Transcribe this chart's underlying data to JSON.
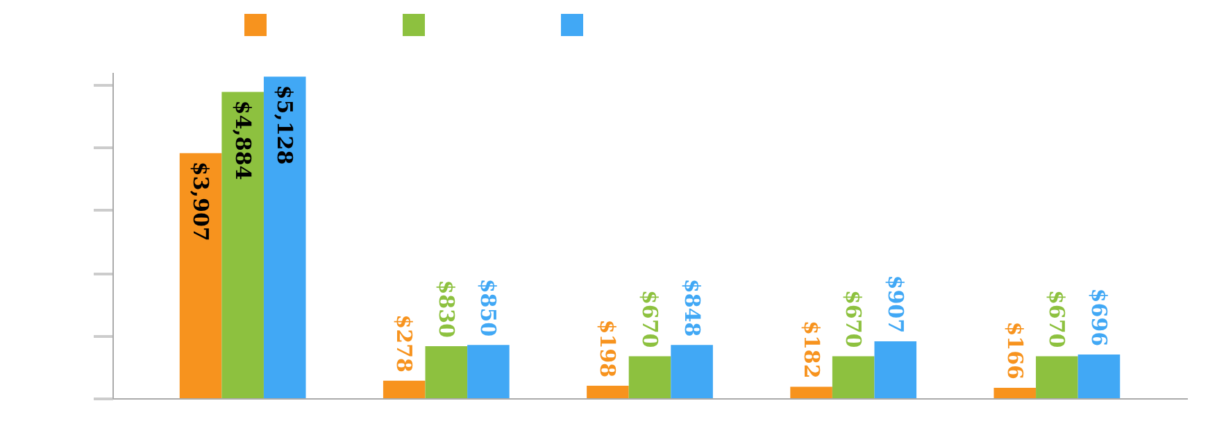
{
  "chart_data": {
    "type": "bar",
    "categories": [
      null,
      null,
      null,
      null,
      null
    ],
    "series": [
      {
        "color": "#f7931e",
        "values": [
          3907,
          278,
          198,
          182,
          166
        ],
        "value_labels": [
          "$3,907",
          "$278",
          "$198",
          "$182",
          "$166"
        ]
      },
      {
        "color": "#8dc13f",
        "values": [
          4884,
          830,
          670,
          670,
          670
        ],
        "value_labels": [
          "$4,884",
          "$830",
          "$670",
          "$670",
          "$670"
        ]
      },
      {
        "color": "#41a8f5",
        "values": [
          5128,
          850,
          848,
          907,
          696
        ],
        "value_labels": [
          "$5,128",
          "$850",
          "$848",
          "$907",
          "$696"
        ]
      }
    ],
    "ylim": [
      0,
      5200
    ],
    "yticks": [
      0,
      1000,
      2000,
      3000,
      4000,
      5000
    ],
    "tick_labels": false,
    "grid": false
  }
}
